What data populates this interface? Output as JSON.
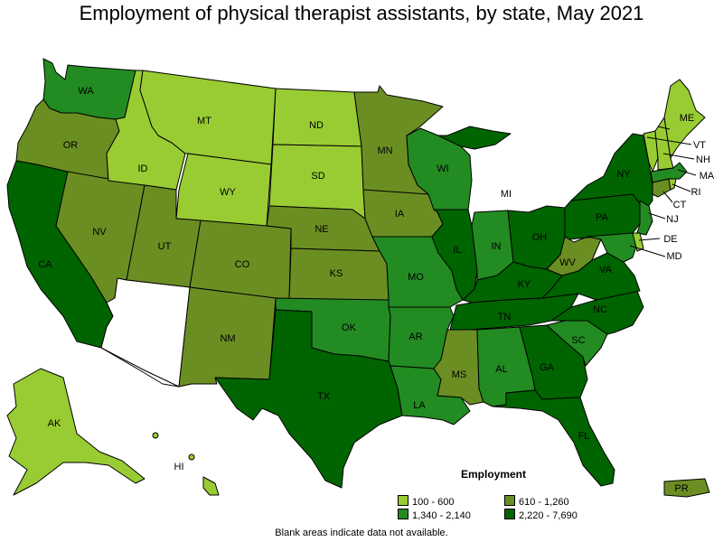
{
  "title": "Employment of physical therapist assistants, by state, May 2021",
  "legend": {
    "title": "Employment",
    "items": [
      {
        "label": "100 - 600",
        "color": "#99cc33"
      },
      {
        "label": "610 - 1,260",
        "color": "#6b8e23"
      },
      {
        "label": "1,340 - 2,140",
        "color": "#228b22"
      },
      {
        "label": "2,220 - 7,690",
        "color": "#006400"
      }
    ]
  },
  "footnote": "Blank areas indicate data not available.",
  "colors": {
    "c1": "#99cc33",
    "c2": "#6b8e23",
    "c3": "#228b22",
    "c4": "#006400",
    "nodata": "#ffffff"
  },
  "states": {
    "WA": "c3",
    "OR": "c2",
    "CA": "c4",
    "NV": "c2",
    "ID": "c1",
    "MT": "c1",
    "WY": "c1",
    "UT": "c2",
    "AZ": "nodata",
    "CO": "c2",
    "NM": "c2",
    "ND": "c1",
    "SD": "c1",
    "NE": "c2",
    "KS": "c2",
    "OK": "c3",
    "TX": "c4",
    "MN": "c2",
    "IA": "c2",
    "MO": "c3",
    "AR": "c3",
    "LA": "c3",
    "WI": "c3",
    "IL": "c4",
    "MI": "c4",
    "IN": "c3",
    "OH": "c4",
    "KY": "c4",
    "TN": "c4",
    "MS": "c2",
    "AL": "c3",
    "GA": "c4",
    "FL": "c4",
    "SC": "c3",
    "NC": "c4",
    "VA": "c4",
    "WV": "c2",
    "PA": "c4",
    "NY": "c4",
    "ME": "c1",
    "VT": "c1",
    "NH": "c1",
    "MA": "c3",
    "RI": "c1",
    "CT": "c2",
    "NJ": "c3",
    "DE": "c1",
    "MD": "c3",
    "AK": "c1",
    "HI": "c1",
    "PR": "c2"
  }
}
